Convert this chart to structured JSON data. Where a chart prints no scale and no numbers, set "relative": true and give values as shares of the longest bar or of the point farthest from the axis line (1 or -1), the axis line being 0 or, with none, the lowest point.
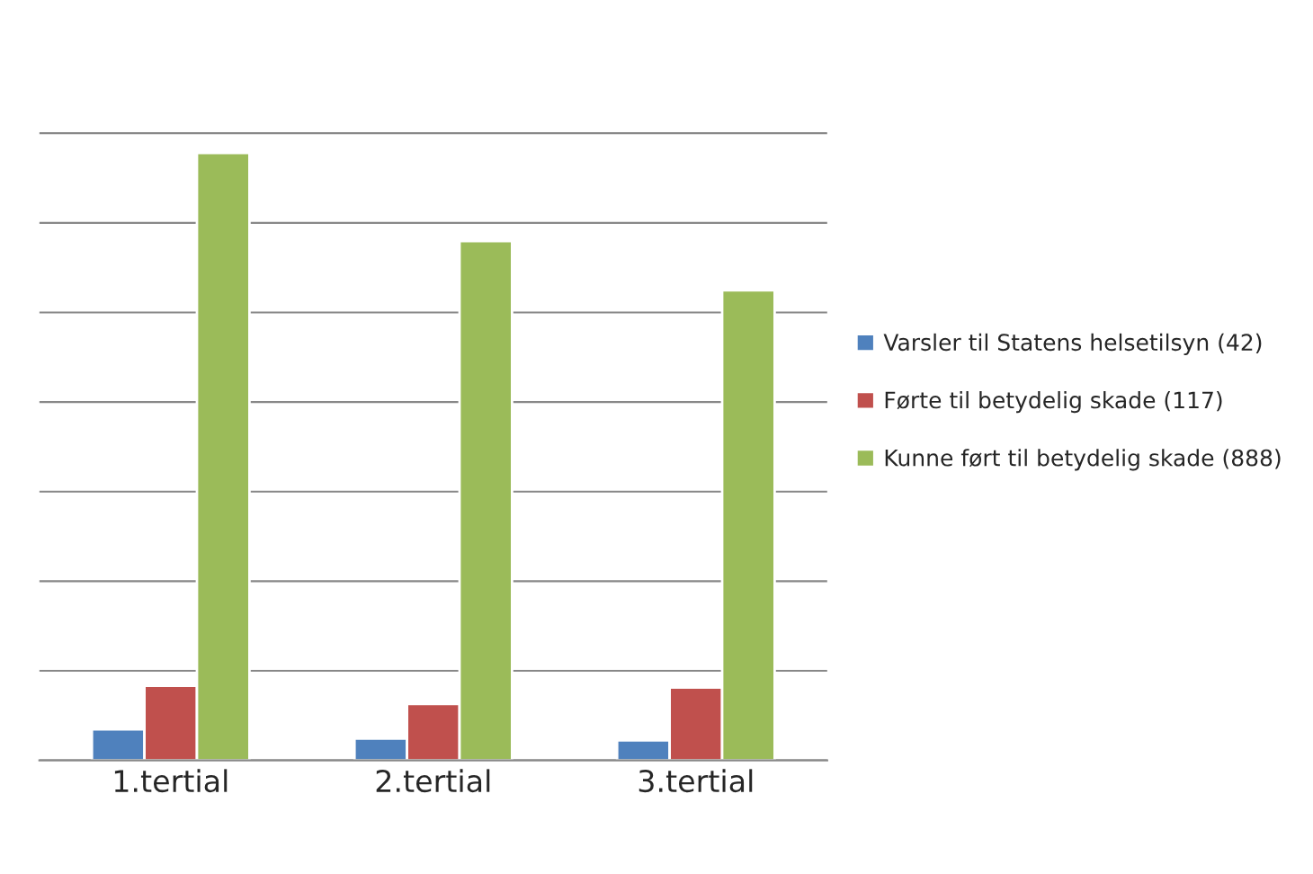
{
  "chart_data": {
    "type": "bar",
    "relative": true,
    "categories": [
      "1.tertial",
      "2.tertial",
      "3.tertial"
    ],
    "series": [
      {
        "name": "Varsler til Statens helsetilsyn (42)",
        "color": "#4f81bd",
        "values": [
          0.051,
          0.036,
          0.033
        ]
      },
      {
        "name": "Førte til betydelig skade (117)",
        "color": "#c0504d",
        "values": [
          0.123,
          0.093,
          0.12
        ]
      },
      {
        "name": "Kunne ført til betydelig skade (888)",
        "color": "#9bbb59",
        "values": [
          1,
          0.855,
          0.774
        ]
      }
    ],
    "grid": "y",
    "legend": "right"
  }
}
